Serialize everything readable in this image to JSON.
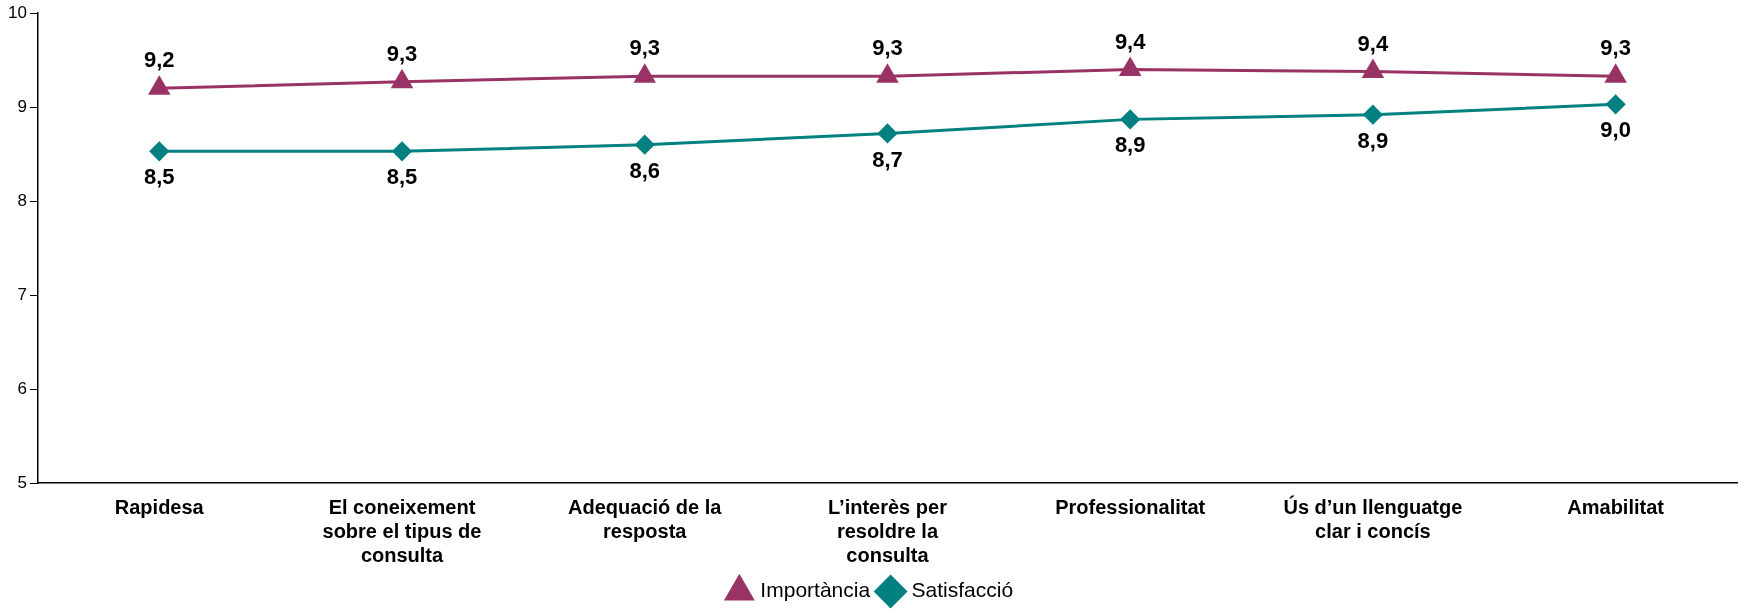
{
  "chart_data": {
    "type": "line",
    "categories": [
      "Rapidesa",
      "El coneixement sobre el tipus de consulta",
      "Adequació de la resposta",
      "L’interès per resoldre la consulta",
      "Professionalitat",
      "Ús d’un llenguatge clar i concís",
      "Amabilitat"
    ],
    "series": [
      {
        "name": "Importància",
        "color": "#993366",
        "marker": "triangle",
        "values": [
          9.2,
          9.27,
          9.33,
          9.33,
          9.4,
          9.38,
          9.33
        ],
        "value_labels": [
          "9,2",
          "9,3",
          "9,3",
          "9,3",
          "9,4",
          "9,4",
          "9,3"
        ]
      },
      {
        "name": "Satisfacció",
        "color": "#008080",
        "marker": "diamond",
        "values": [
          8.53,
          8.53,
          8.6,
          8.72,
          8.87,
          8.92,
          9.03
        ],
        "value_labels": [
          "8,5",
          "8,5",
          "8,6",
          "8,7",
          "8,9",
          "8,9",
          "9,0"
        ]
      }
    ],
    "ylim": [
      5,
      10
    ],
    "yticks": [
      5,
      6,
      7,
      8,
      9,
      10
    ],
    "grid": false,
    "legend": "bottom"
  }
}
